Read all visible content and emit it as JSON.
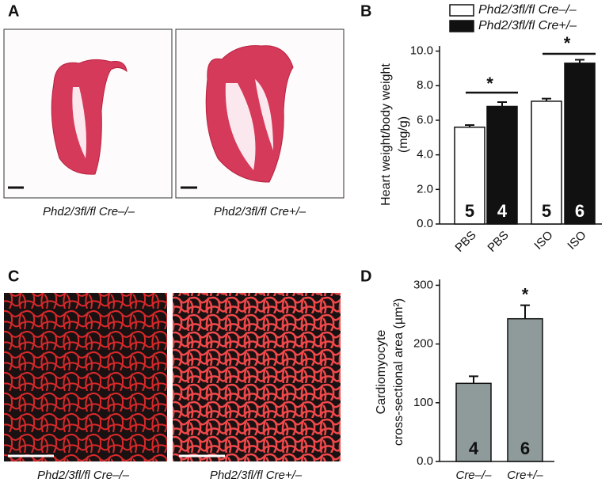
{
  "panels": [
    {
      "label": "A",
      "captions": [
        "Phd2/3fl/fl Cre–/–",
        "Phd2/3fl/fl Cre+/–"
      ]
    },
    {
      "label": "B"
    },
    {
      "label": "C",
      "captions": [
        "Phd2/3fl/fl Cre–/–",
        "Phd2/3fl/fl Cre+/–"
      ]
    },
    {
      "label": "D"
    }
  ],
  "chart_data": [
    {
      "type": "bar",
      "ylabel": [
        "Heart weight/body weight",
        "(mg/g)"
      ],
      "categories": [
        "PBS",
        "PBS",
        "ISO",
        "ISO"
      ],
      "series": [
        {
          "name": "Phd2/3fl/fl Cre–/–",
          "color": "#ffffff",
          "values": [
            5.6,
            null,
            7.1,
            null
          ],
          "errors": [
            0.12,
            null,
            0.15,
            null
          ]
        },
        {
          "name": "Phd2/3fl/fl Cre+/–",
          "color": "#111111",
          "values": [
            null,
            6.8,
            null,
            9.3
          ],
          "errors": [
            null,
            0.25,
            null,
            0.2
          ]
        }
      ],
      "n_labels": [
        "5",
        "4",
        "5",
        "6"
      ],
      "annotations": [
        {
          "text": "*"
        },
        {
          "text": "*"
        }
      ],
      "ylim": [
        0,
        10.3
      ],
      "yticks": [
        {
          "value": 0,
          "label": "0.0"
        },
        {
          "value": 2,
          "label": "2.0"
        },
        {
          "value": 4,
          "label": "4.0"
        },
        {
          "value": 6,
          "label": "6.0"
        },
        {
          "value": 8,
          "label": "8.0"
        },
        {
          "value": 10,
          "label": "10.0"
        }
      ]
    },
    {
      "type": "bar",
      "ylabel": [
        "Cardiomyocyte",
        "cross-sectional area (µm²)"
      ],
      "categories": [
        "Cre–/–",
        "Cre+/–"
      ],
      "series": [
        {
          "color": "#8f9b9b",
          "values": [
            133,
            243
          ],
          "errors": [
            12,
            23
          ]
        }
      ],
      "n_labels": [
        "4",
        "6"
      ],
      "annotations": [
        {
          "text": "*"
        }
      ],
      "ylim": [
        0,
        310
      ],
      "yticks": [
        {
          "value": 0,
          "label": "0.0"
        },
        100,
        200,
        300
      ]
    }
  ]
}
